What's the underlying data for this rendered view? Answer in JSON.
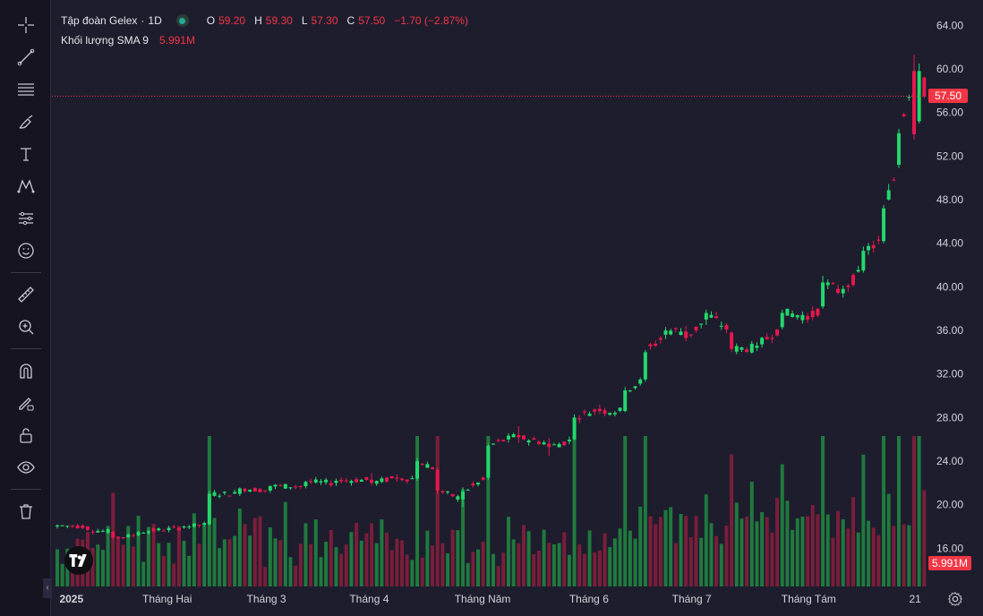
{
  "legend": {
    "symbol": "Tập đoàn Gelex",
    "sep": "·",
    "interval": "1D",
    "o_label": "O",
    "o_val": "59.20",
    "h_label": "H",
    "h_val": "59.30",
    "l_label": "L",
    "l_val": "57.30",
    "c_label": "C",
    "c_val": "57.50",
    "change": "−1.70 (−2.87%)",
    "volume_label": "Khối lượng SMA 9",
    "volume_val": "5.991M"
  },
  "price_tag": "57.50",
  "volume_tag": "5.991M",
  "toolbar": [
    "crosshair-icon",
    "trendline-icon",
    "fib-icon",
    "brush-icon",
    "text-icon",
    "pattern-icon",
    "forecast-icon",
    "emoji-icon",
    "ruler-icon",
    "zoom-in-icon",
    "magnet-icon",
    "lock-draw-icon",
    "lock-icon",
    "eye-icon",
    "trash-icon"
  ],
  "colors": {
    "up": "#22d96b",
    "down": "#e8174d",
    "up_vol": "#1f7a3e",
    "down_vol": "#7a1e3a",
    "bg": "#1e1d2e"
  },
  "chart_data": {
    "type": "candlestick",
    "title": "Tập đoàn Gelex",
    "interval": "1D",
    "y_axis": {
      "ticks": [
        "64.00",
        "60.00",
        "56.00",
        "52.00",
        "48.00",
        "44.00",
        "40.00",
        "36.00",
        "32.00",
        "28.00",
        "24.00",
        "20.00",
        "16.00"
      ],
      "min": 12.5,
      "max": 65.5
    },
    "x_axis": {
      "labels": [
        "2025",
        "Tháng Hai",
        "Tháng 3",
        "Tháng 4",
        "Tháng Năm",
        "Tháng 6",
        "Tháng 7",
        "Tháng Tám",
        "21"
      ]
    },
    "last_close": 57.5,
    "ohlc_points": [
      [
        "2025-01-02",
        18.0,
        18.2,
        17.8,
        18.1
      ],
      [
        "2025-01-10",
        18.0,
        18.1,
        17.6,
        17.7
      ],
      [
        "2025-01-17",
        17.5,
        17.6,
        16.8,
        17.0
      ],
      [
        "2025-01-24",
        17.2,
        17.6,
        17.1,
        17.5
      ],
      [
        "2025-02-05",
        17.9,
        18.1,
        17.8,
        18.0
      ],
      [
        "2025-02-12",
        18.2,
        21.3,
        18.1,
        21.0
      ],
      [
        "2025-02-20",
        21.0,
        21.6,
        20.8,
        21.5
      ],
      [
        "2025-02-28",
        21.3,
        21.8,
        21.1,
        21.7
      ],
      [
        "2025-03-10",
        21.7,
        22.2,
        21.5,
        22.1
      ],
      [
        "2025-03-18",
        22.0,
        22.4,
        21.7,
        22.2
      ],
      [
        "2025-03-28",
        22.3,
        22.9,
        21.8,
        22.0
      ],
      [
        "2025-04-04",
        22.5,
        22.8,
        22.1,
        22.4
      ],
      [
        "2025-04-10",
        22.4,
        24.3,
        22.2,
        24.0
      ],
      [
        "2025-04-15",
        23.2,
        23.4,
        21.0,
        21.3
      ],
      [
        "2025-04-22",
        20.5,
        21.6,
        19.8,
        21.2
      ],
      [
        "2025-04-29",
        22.5,
        25.6,
        22.3,
        25.4
      ],
      [
        "2025-05-07",
        26.4,
        27.2,
        25.7,
        26.2
      ],
      [
        "2025-05-16",
        25.6,
        26.1,
        24.5,
        25.3
      ],
      [
        "2025-05-23",
        26.0,
        28.3,
        25.9,
        28.0
      ],
      [
        "2025-05-30",
        28.8,
        29.2,
        28.3,
        28.6
      ],
      [
        "2025-06-06",
        28.6,
        30.8,
        28.5,
        30.5
      ],
      [
        "2025-06-12",
        31.5,
        34.2,
        31.3,
        34.0
      ],
      [
        "2025-06-18",
        35.6,
        36.3,
        35.2,
        36.0
      ],
      [
        "2025-06-24",
        35.9,
        36.4,
        35.0,
        35.3
      ],
      [
        "2025-06-30",
        37.0,
        37.9,
        36.5,
        37.6
      ],
      [
        "2025-07-07",
        35.8,
        35.9,
        34.0,
        34.3
      ],
      [
        "2025-07-14",
        34.4,
        34.9,
        34.1,
        34.6
      ],
      [
        "2025-07-21",
        36.3,
        37.9,
        36.1,
        37.6
      ],
      [
        "2025-07-28",
        37.3,
        37.6,
        36.7,
        37.0
      ],
      [
        "2025-08-01",
        38.2,
        41.0,
        38.0,
        40.4
      ],
      [
        "2025-08-06",
        39.4,
        40.1,
        39.0,
        39.8
      ],
      [
        "2025-08-12",
        41.5,
        43.7,
        41.3,
        43.3
      ],
      [
        "2025-08-18",
        44.2,
        47.5,
        44.0,
        47.2
      ],
      [
        "2025-08-22",
        51.2,
        54.5,
        50.9,
        54.1
      ],
      [
        "2025-08-26",
        59.8,
        61.3,
        53.5,
        54.0
      ],
      [
        "2025-08-28",
        55.2,
        60.5,
        55.0,
        59.8
      ],
      [
        "2025-08-29",
        59.2,
        59.3,
        57.3,
        57.5
      ]
    ]
  }
}
